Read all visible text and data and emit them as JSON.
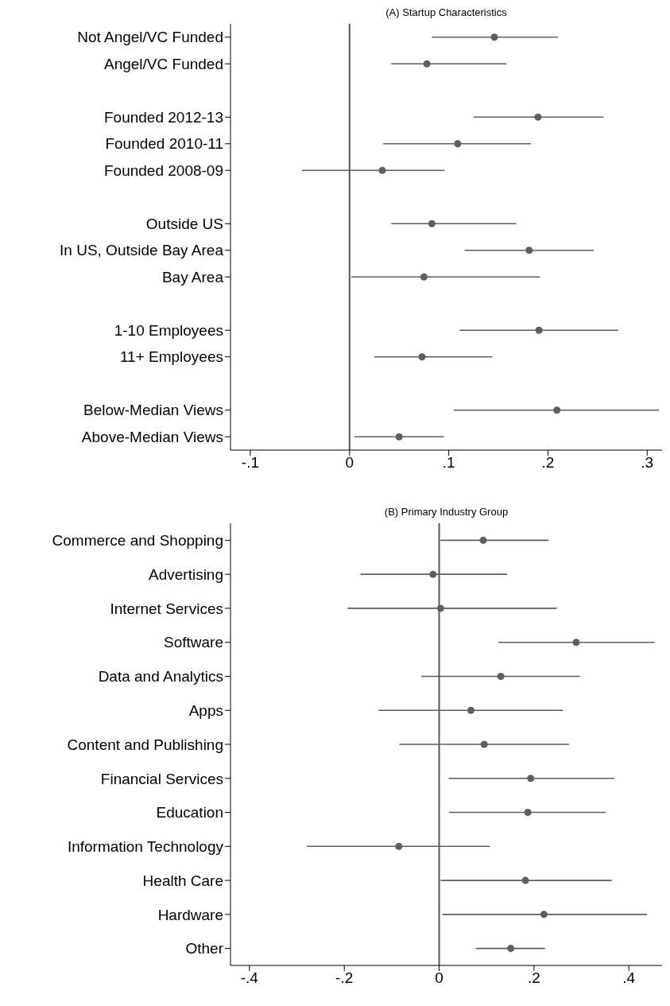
{
  "chart_data": [
    {
      "type": "scatter",
      "orientation": "horizontal",
      "title": "(A) Startup Characteristics",
      "marker": "circle",
      "color": "#5e5e5e",
      "categories": [
        "Not Angel/VC Funded",
        "Angel/VC Funded",
        null,
        "Founded 2012-13",
        "Founded 2010-11",
        "Founded 2008-09",
        null,
        "Outside US",
        "In US, Outside Bay Area",
        "Bay Area",
        null,
        "1-10 Employees",
        "11+ Employees",
        null,
        "Below-Median Views",
        "Above-Median Views"
      ],
      "values": [
        0.146,
        0.078,
        null,
        0.19,
        0.109,
        0.033,
        null,
        0.083,
        0.181,
        0.075,
        null,
        0.191,
        0.073,
        null,
        0.209,
        0.05
      ],
      "errors": [
        [
          0.083,
          0.21
        ],
        [
          0.042,
          0.158
        ],
        null,
        [
          0.125,
          0.256
        ],
        [
          0.034,
          0.183
        ],
        [
          -0.048,
          0.096
        ],
        null,
        [
          0.042,
          0.168
        ],
        [
          0.116,
          0.246
        ],
        [
          0.002,
          0.192
        ],
        null,
        [
          0.111,
          0.271
        ],
        [
          0.025,
          0.144
        ],
        null,
        [
          0.105,
          0.312
        ],
        [
          0.005,
          0.095
        ]
      ],
      "xlim": [
        -0.12,
        0.315
      ],
      "xticks": [
        {
          "value": -0.1,
          "label": "-.1"
        },
        0,
        {
          "value": 0.1,
          "label": ".1"
        },
        {
          "value": 0.2,
          "label": ".2"
        },
        {
          "value": 0.3,
          "label": ".3"
        }
      ],
      "ref_lines": [
        {
          "axis": "x",
          "value": 0,
          "color": "#555555"
        }
      ]
    },
    {
      "type": "scatter",
      "orientation": "horizontal",
      "title": "(B) Primary Industry Group",
      "marker": "circle",
      "color": "#5e5e5e",
      "categories": [
        "Commerce and Shopping",
        "Advertising",
        "Internet Services",
        "Software",
        "Data and Analytics",
        "Apps",
        "Content and Publishing",
        "Financial Services",
        "Education",
        "Information Technology",
        "Health Care",
        "Hardware",
        "Other"
      ],
      "values": [
        0.093,
        -0.013,
        0.003,
        0.289,
        0.13,
        0.067,
        0.095,
        0.193,
        0.187,
        -0.085,
        0.182,
        0.221,
        0.151
      ],
      "errors": [
        [
          0.002,
          0.231
        ],
        [
          -0.166,
          0.143
        ],
        [
          -0.193,
          0.248
        ],
        [
          0.125,
          0.454
        ],
        [
          -0.038,
          0.297
        ],
        [
          -0.128,
          0.261
        ],
        [
          -0.084,
          0.274
        ],
        [
          0.02,
          0.369
        ],
        [
          0.021,
          0.351
        ],
        [
          -0.279,
          0.107
        ],
        [
          0.003,
          0.364
        ],
        [
          0.007,
          0.438
        ],
        [
          0.077,
          0.223
        ]
      ],
      "xlim": [
        -0.44,
        0.47
      ],
      "xticks": [
        {
          "value": -0.4,
          "label": "-.4"
        },
        {
          "value": -0.2,
          "label": "-.2"
        },
        0,
        {
          "value": 0.2,
          "label": ".2"
        },
        {
          "value": 0.4,
          "label": ".4"
        }
      ],
      "ref_lines": [
        {
          "axis": "x",
          "value": 0,
          "color": "#555555"
        }
      ]
    }
  ]
}
